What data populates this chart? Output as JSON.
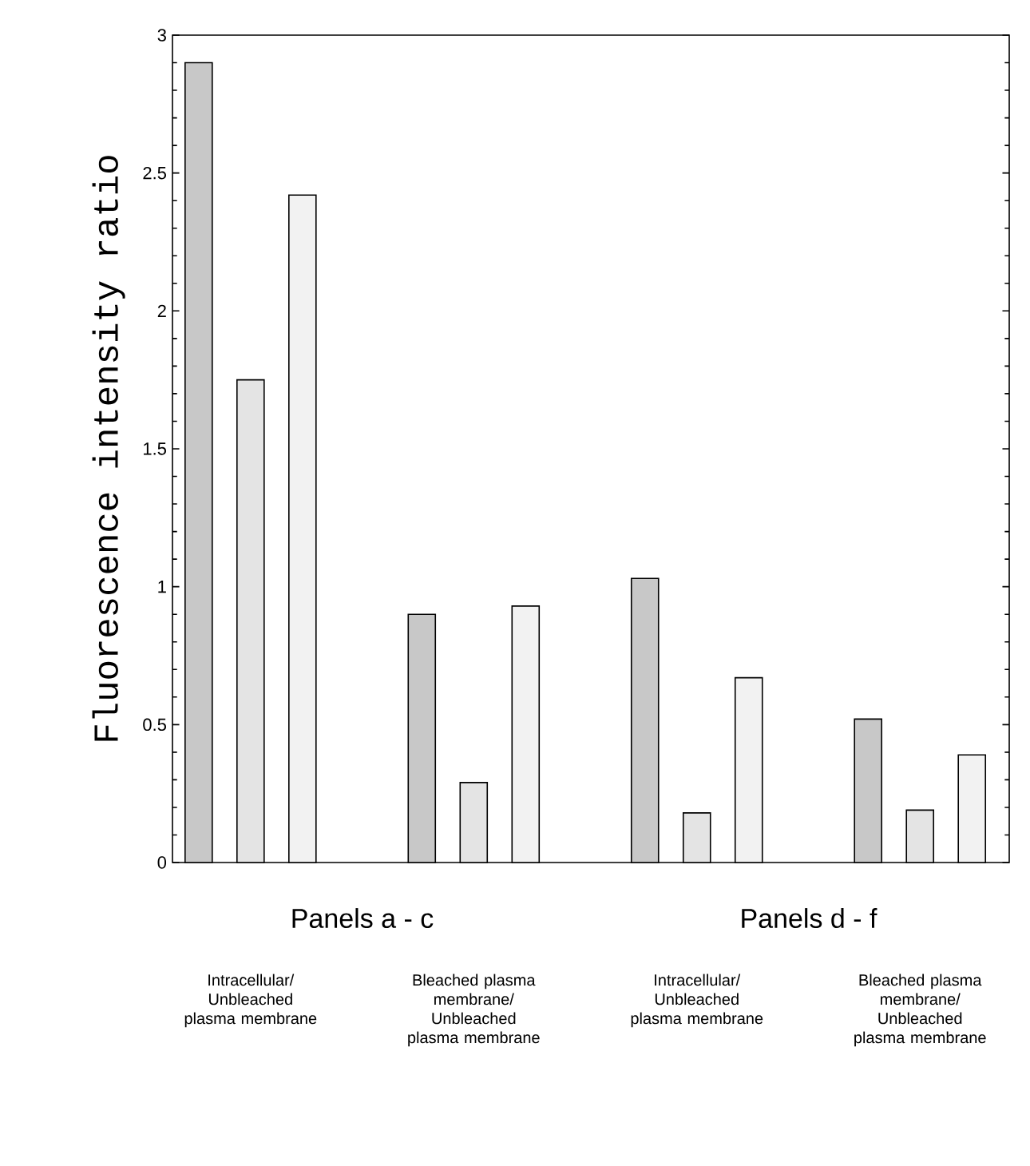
{
  "chart_data": {
    "type": "bar",
    "ylabel": "Fluorescence intensity ratio",
    "categories": [
      "Intracellular/ Unbleached plasma membrane",
      "Bleached plasma membrane/ Unbleached plasma membrane",
      "Intracellular/ Unbleached plasma membrane",
      "Bleached plasma membrane/ Unbleached plasma membrane"
    ],
    "series": [
      {
        "color": "#c8c8c8",
        "values": [
          2.9,
          0.9,
          1.03,
          0.52
        ]
      },
      {
        "color": "#e4e4e4",
        "values": [
          1.75,
          0.29,
          0.18,
          0.19
        ]
      },
      {
        "color": "#f2f2f2",
        "values": [
          2.42,
          0.93,
          0.67,
          0.39
        ]
      }
    ],
    "ylim": [
      0,
      3
    ],
    "yticks": [
      0,
      0.5,
      1,
      1.5,
      2,
      2.5,
      3
    ],
    "annotations": [
      "Panels a - c",
      "Panels d - f"
    ]
  }
}
